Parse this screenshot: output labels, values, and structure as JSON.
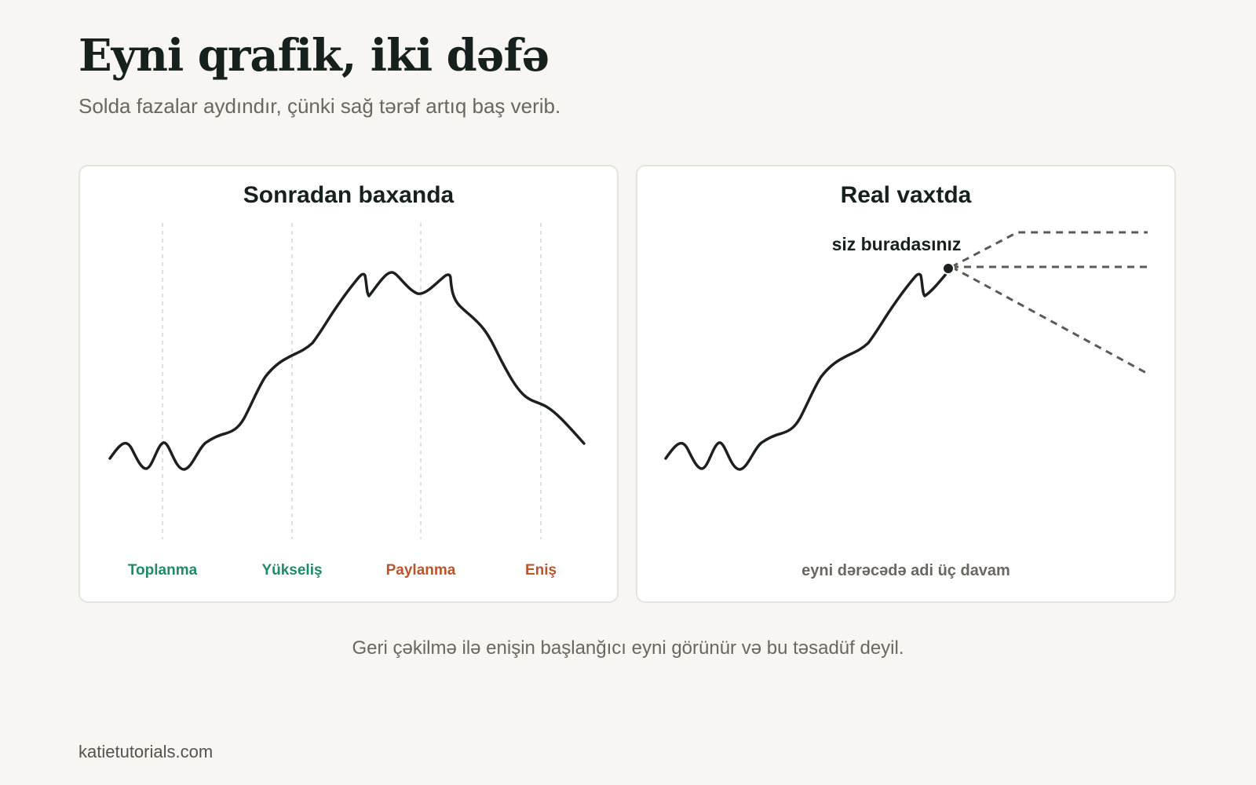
{
  "header": {
    "title": "Eyni qrafik, iki dəfə",
    "subtitle": "Solda fazalar aydındır, çünki sağ tərəf artıq baş verib."
  },
  "panels": {
    "left": {
      "title": "Sonradan baxanda",
      "phases": [
        {
          "label": "Toplanma",
          "color": "#1f8a6a"
        },
        {
          "label": "Yükseliş",
          "color": "#1f8a6a"
        },
        {
          "label": "Paylanma",
          "color": "#b8552c"
        },
        {
          "label": "Eniş",
          "color": "#b8552c"
        }
      ]
    },
    "right": {
      "title": "Real vaxtda",
      "marker_label": "siz buradasınız",
      "note": "eyni dərəcədə adi üç davam"
    }
  },
  "caption": "Geri çəkilmə ilə enişin başlanğıcı eyni görünür və bu təsadüf deyil.",
  "footer": "katietutorials.com",
  "colors": {
    "background": "#f7f6f2",
    "line": "#1c211f",
    "accumulation": "#1f8a6a",
    "distribution": "#b8552c",
    "muted": "#6a6660"
  }
}
